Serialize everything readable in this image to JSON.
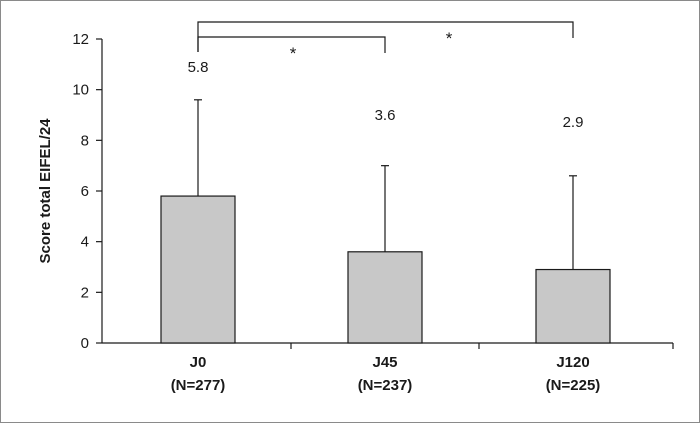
{
  "chart_data": {
    "type": "bar",
    "ylabel": "Score total EIFEL/24",
    "ylim": [
      0,
      12
    ],
    "yticks": [
      0,
      2,
      4,
      6,
      8,
      10,
      12
    ],
    "categories": [
      {
        "name": "J0",
        "n": "(N=277)"
      },
      {
        "name": "J45",
        "n": "(N=237)"
      },
      {
        "name": "J120",
        "n": "(N=225)"
      }
    ],
    "values": [
      5.8,
      3.6,
      2.9
    ],
    "data_labels": [
      "5.8",
      "3.6",
      "2.9"
    ],
    "error_upper": [
      9.6,
      7.0,
      6.6
    ],
    "significance": [
      {
        "from": 0,
        "to": 1,
        "label": "*"
      },
      {
        "from": 0,
        "to": 2,
        "label": "*"
      }
    ],
    "colors": {
      "bar": "#c8c8c8",
      "stroke": "#1a1a1a"
    }
  }
}
